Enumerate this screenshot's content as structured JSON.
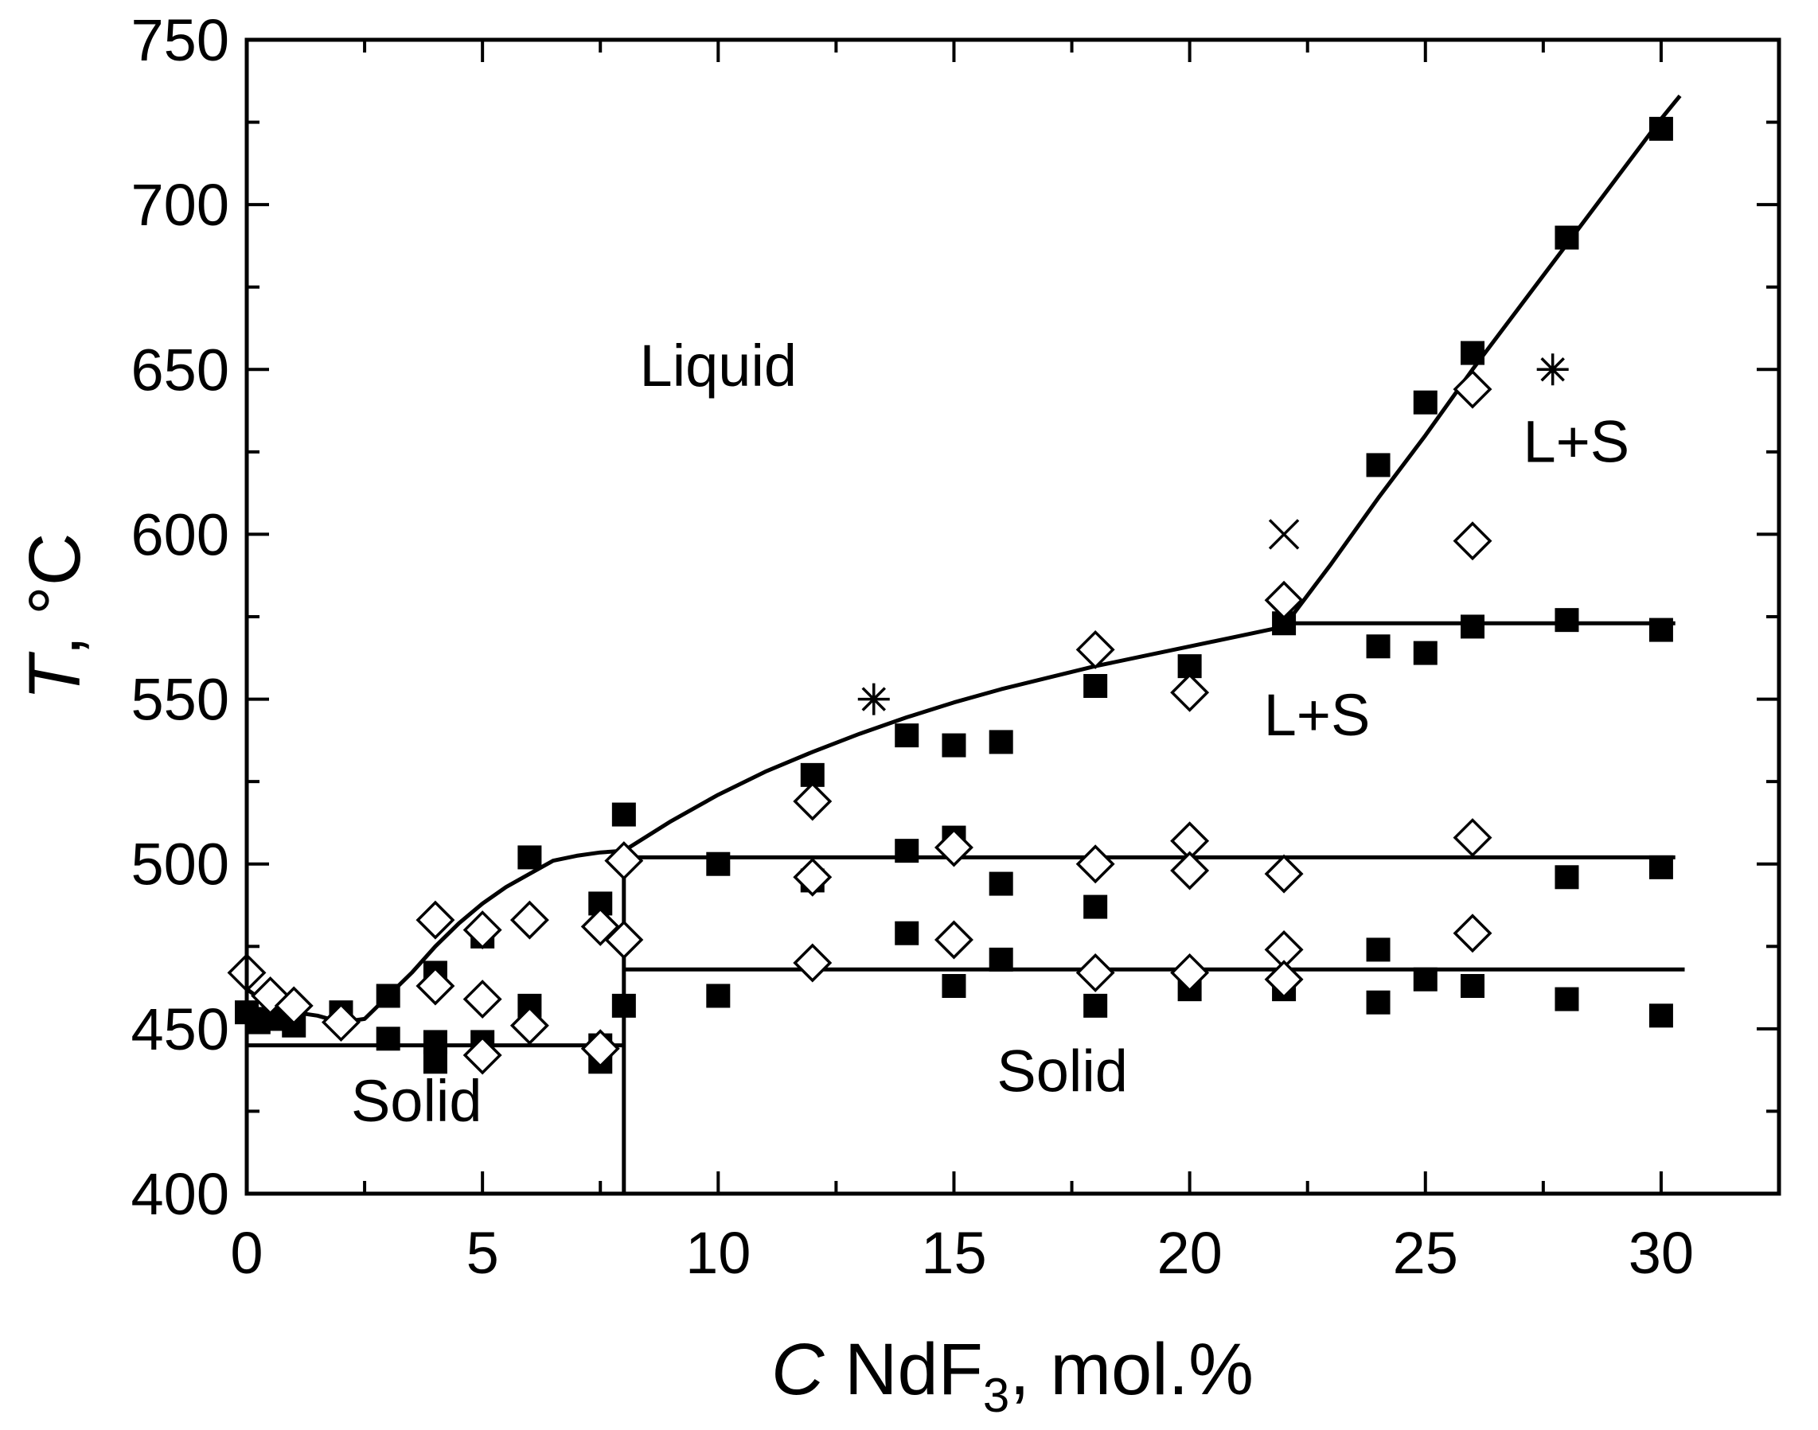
{
  "chart_data": {
    "type": "scatter",
    "title": "",
    "xlabel": {
      "var": "C",
      "text": " NdF",
      "sub": "3",
      "suffix": ", mol.%"
    },
    "ylabel": {
      "var": "T",
      "suffix": ", °C"
    },
    "xlim": [
      0,
      32.5
    ],
    "ylim": [
      400,
      750
    ],
    "xticks": [
      0,
      5,
      10,
      15,
      20,
      25,
      30
    ],
    "yticks": [
      400,
      450,
      500,
      550,
      600,
      650,
      700,
      750
    ],
    "grid": false,
    "region_labels": [
      {
        "text": "Liquid",
        "x": 10,
        "y": 645
      },
      {
        "text": "L+S",
        "x": 28.2,
        "y": 622
      },
      {
        "text": "L+S",
        "x": 22.7,
        "y": 539
      },
      {
        "text": "Solid",
        "x": 3.6,
        "y": 422
      },
      {
        "text": "Solid",
        "x": 17.3,
        "y": 431
      }
    ],
    "series": [
      {
        "name": "filled squares",
        "marker": "filled-square",
        "points": [
          [
            0,
            455
          ],
          [
            0.25,
            452
          ],
          [
            0.5,
            453
          ],
          [
            1,
            451
          ],
          [
            2,
            455
          ],
          [
            3,
            460
          ],
          [
            3,
            447
          ],
          [
            4,
            467
          ],
          [
            4,
            446
          ],
          [
            4,
            440
          ],
          [
            5,
            478
          ],
          [
            5,
            446
          ],
          [
            6,
            502
          ],
          [
            6,
            457
          ],
          [
            7.5,
            488
          ],
          [
            7.5,
            445
          ],
          [
            7.5,
            440
          ],
          [
            8,
            515
          ],
          [
            8,
            457
          ],
          [
            10,
            500
          ],
          [
            10,
            460
          ],
          [
            12,
            527
          ],
          [
            12,
            495
          ],
          [
            14,
            539
          ],
          [
            14,
            504
          ],
          [
            14,
            479
          ],
          [
            15,
            536
          ],
          [
            15,
            508
          ],
          [
            15,
            463
          ],
          [
            16,
            537
          ],
          [
            16,
            494
          ],
          [
            16,
            471
          ],
          [
            18,
            554
          ],
          [
            18,
            487
          ],
          [
            18,
            457
          ],
          [
            20,
            560
          ],
          [
            20,
            462
          ],
          [
            22,
            573
          ],
          [
            22,
            462
          ],
          [
            24,
            621
          ],
          [
            24,
            566
          ],
          [
            24,
            474
          ],
          [
            24,
            458
          ],
          [
            25,
            640
          ],
          [
            25,
            564
          ],
          [
            25,
            465
          ],
          [
            26,
            655
          ],
          [
            26,
            572
          ],
          [
            26,
            463
          ],
          [
            28,
            690
          ],
          [
            28,
            574
          ],
          [
            28,
            496
          ],
          [
            28,
            459
          ],
          [
            30,
            723
          ],
          [
            30,
            571
          ],
          [
            30,
            499
          ],
          [
            30,
            454
          ]
        ]
      },
      {
        "name": "open diamonds",
        "marker": "open-diamond",
        "points": [
          [
            0,
            467
          ],
          [
            0.5,
            460
          ],
          [
            1,
            457
          ],
          [
            2,
            452
          ],
          [
            4,
            483
          ],
          [
            4,
            463
          ],
          [
            5,
            480
          ],
          [
            5,
            459
          ],
          [
            5,
            442
          ],
          [
            6,
            483
          ],
          [
            6,
            451
          ],
          [
            7.5,
            481
          ],
          [
            7.5,
            444
          ],
          [
            8,
            501
          ],
          [
            8,
            477
          ],
          [
            12,
            519
          ],
          [
            12,
            496
          ],
          [
            12,
            470
          ],
          [
            15,
            505
          ],
          [
            15,
            477
          ],
          [
            18,
            565
          ],
          [
            18,
            500
          ],
          [
            18,
            467
          ],
          [
            20,
            552
          ],
          [
            20,
            507
          ],
          [
            20,
            498
          ],
          [
            20,
            467
          ],
          [
            22,
            580
          ],
          [
            22,
            497
          ],
          [
            22,
            474
          ],
          [
            22,
            465
          ],
          [
            26,
            644
          ],
          [
            26,
            598
          ],
          [
            26,
            508
          ],
          [
            26,
            479
          ]
        ]
      },
      {
        "name": "asterisks",
        "marker": "asterisk",
        "points": [
          [
            13.3,
            550
          ],
          [
            27.7,
            650
          ]
        ]
      },
      {
        "name": "cross",
        "marker": "x-cross",
        "points": [
          [
            22,
            600
          ]
        ]
      }
    ],
    "lines": [
      {
        "name": "liquidus",
        "points": [
          [
            0,
            462
          ],
          [
            0.5,
            457
          ],
          [
            1,
            455
          ],
          [
            1.5,
            454
          ],
          [
            2,
            452
          ],
          [
            2.5,
            453
          ],
          [
            3,
            460
          ],
          [
            3.5,
            467
          ],
          [
            4,
            475
          ],
          [
            4.5,
            482
          ],
          [
            5,
            488
          ],
          [
            5.5,
            493
          ],
          [
            6,
            497
          ],
          [
            6.5,
            501
          ],
          [
            7,
            502.5
          ],
          [
            7.5,
            503.5
          ],
          [
            8,
            504
          ],
          [
            9,
            513
          ],
          [
            10,
            521
          ],
          [
            11,
            528
          ],
          [
            12,
            534
          ],
          [
            13,
            539.5
          ],
          [
            14,
            544.5
          ],
          [
            15,
            549
          ],
          [
            16,
            553
          ],
          [
            17,
            556.5
          ],
          [
            18,
            560
          ],
          [
            19,
            563
          ],
          [
            20,
            566
          ],
          [
            21,
            569
          ],
          [
            22,
            572
          ],
          [
            23,
            591
          ],
          [
            24,
            611
          ],
          [
            25,
            630
          ],
          [
            26,
            650
          ],
          [
            27,
            669
          ],
          [
            28,
            688
          ],
          [
            29,
            707
          ],
          [
            30,
            726
          ],
          [
            30.4,
            733
          ]
        ]
      },
      {
        "name": "solidus-left",
        "points": [
          [
            0,
            445
          ],
          [
            8,
            445
          ]
        ]
      },
      {
        "name": "vertical-divider",
        "points": [
          [
            8,
            400
          ],
          [
            8,
            504
          ]
        ]
      },
      {
        "name": "eutectic-500",
        "points": [
          [
            8,
            502
          ],
          [
            30.3,
            502
          ]
        ]
      },
      {
        "name": "eutectic-468",
        "points": [
          [
            8,
            468
          ],
          [
            30.5,
            468
          ]
        ]
      },
      {
        "name": "peritectic-573",
        "points": [
          [
            22,
            573
          ],
          [
            30.3,
            573
          ]
        ]
      }
    ]
  }
}
